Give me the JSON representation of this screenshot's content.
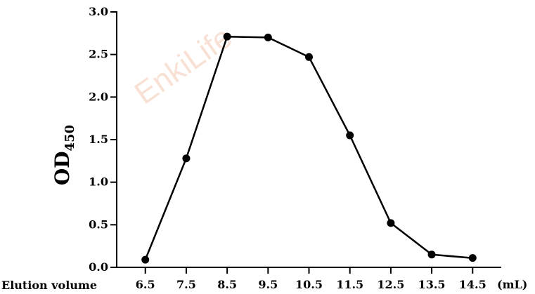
{
  "chart_data": {
    "type": "line",
    "x_axis_title": "Elution volume",
    "x_unit": "(mL)",
    "y_axis_title": "OD",
    "y_axis_subscript": "450",
    "x": [
      6.5,
      7.5,
      8.5,
      9.5,
      10.5,
      11.5,
      12.5,
      13.5,
      14.5
    ],
    "x_tick_labels": [
      "6.5",
      "7.5",
      "8.5",
      "9.5",
      "10.5",
      "11.5",
      "12.5",
      "13.5",
      "14.5"
    ],
    "y": [
      0.09,
      1.28,
      2.71,
      2.7,
      2.47,
      1.55,
      0.52,
      0.15,
      0.11
    ],
    "y_ticks": [
      0.0,
      0.5,
      1.0,
      1.5,
      2.0,
      2.5,
      3.0
    ],
    "y_tick_labels": [
      "0.0",
      "0.5",
      "1.0",
      "1.5",
      "2.0",
      "2.5",
      "3.0"
    ],
    "ylim": [
      0,
      3.0
    ],
    "xlim": [
      5.8,
      15.2
    ],
    "grid": false,
    "legend": "none",
    "line_color": "#000000",
    "marker_color": "#000000",
    "watermark": "EnkiLife",
    "watermark_color": "#f4c9b2"
  }
}
